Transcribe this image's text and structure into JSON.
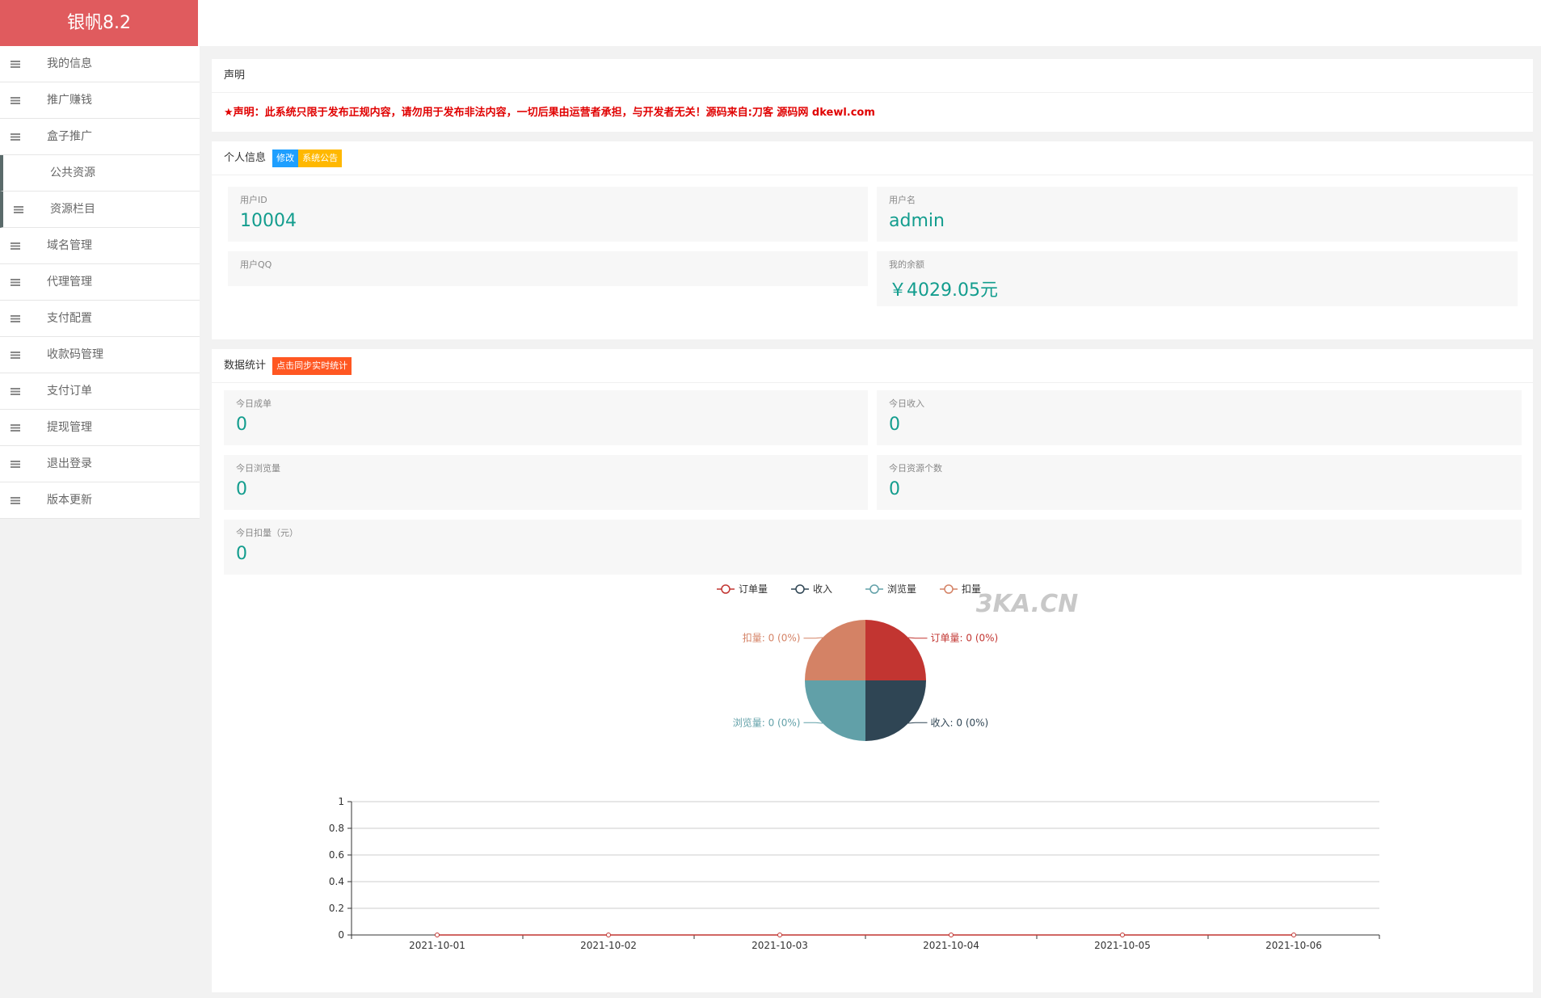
{
  "sidebar": {
    "brand": "银帆8.2",
    "menu": [
      "我的信息",
      "推广赚钱",
      "盒子推广",
      "公共资源",
      "资源栏目",
      "域名管理",
      "代理管理",
      "支付配置",
      "收款码管理",
      "支付订单",
      "提现管理",
      "退出登录",
      "版本更新"
    ]
  },
  "notice": {
    "title": "声明",
    "text": "★声明：此系统只限于发布正规内容，请勿用于发布非法内容，一切后果由运营者承担，与开发者无关！源码来自:刀客 源码网 dkewl.com"
  },
  "profile": {
    "title": "个人信息",
    "buttons": [
      "修改",
      "系统公告"
    ],
    "fields": [
      {
        "label": "用户ID",
        "value": "10004"
      },
      {
        "label": "用户名",
        "value": "admin"
      },
      {
        "label": "用户QQ"
      },
      {
        "label": "我的余额",
        "value": "￥4029.05元"
      }
    ]
  },
  "stats": {
    "title": "数据统计",
    "button": "点击同步实时统计",
    "items": [
      {
        "label": "今日成单",
        "value": 0
      },
      {
        "label": "今日收入",
        "value": 0
      },
      {
        "label": "今日浏览量",
        "value": 0
      },
      {
        "label": "今日资源个数",
        "value": 0
      },
      {
        "label": "今日扣量（元）",
        "value": 0
      }
    ]
  },
  "watermark": "3KA.CN",
  "chart_data": [
    {
      "type": "pie",
      "categories": [
        "订单量",
        "收入",
        "浏览量",
        "扣量"
      ],
      "values": [
        0,
        0,
        0,
        0
      ],
      "value_labels": [
        "订单量: 0 (0%)",
        "收入: 0 (0%)",
        "浏览量: 0 (0%)",
        "扣量: 0 (0%)"
      ],
      "colors": [
        "#c23531",
        "#2f4554",
        "#61a0a8",
        "#d48265"
      ]
    },
    {
      "type": "line",
      "categories": [
        "2021-10-01",
        "2021-10-02",
        "2021-10-03",
        "2021-10-04",
        "2021-10-05",
        "2021-10-06"
      ],
      "values": [
        0,
        0,
        0,
        0,
        0,
        0
      ],
      "color": "#c23531",
      "ylim": [
        0,
        1
      ],
      "yticks": [
        0,
        0.2,
        0.4,
        0.6,
        0.8,
        1
      ],
      "grid": true
    }
  ]
}
